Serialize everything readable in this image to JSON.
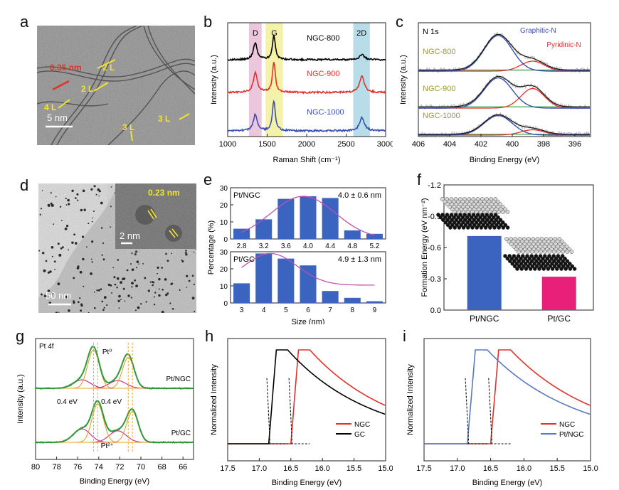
{
  "panel_labels": {
    "a": "a",
    "b": "b",
    "c": "c",
    "d": "d",
    "e": "e",
    "f": "f",
    "g": "g",
    "h": "h",
    "i": "i"
  },
  "panel_a": {
    "scale": "5 nm",
    "spacing": "0.36 nm",
    "layers": [
      "2 L",
      "2 L",
      "4 L",
      "3 L",
      "3 L"
    ],
    "bg_color": "#8a8a8a",
    "label_color": "#f3e32e",
    "spacing_color": "#e0322a"
  },
  "panel_d": {
    "scale_main": "50 nm",
    "scale_inset": "2 nm",
    "lattice": "0.23 nm",
    "bg_color": "#b9b9b9",
    "inset_color": "#6e6e6e",
    "label_color": "#f3e32e"
  },
  "chart_data": [
    {
      "panel": "b",
      "type": "line",
      "xlabel": "Raman Shift (cm⁻¹)",
      "ylabel": "Intensity (a.u.)",
      "xlim": [
        1000,
        3000
      ],
      "xticks": [
        1000,
        1500,
        2000,
        2500,
        3000
      ],
      "bands": [
        {
          "label": "D",
          "range": [
            1270,
            1430
          ],
          "color": "#ecc6dc"
        },
        {
          "label": "G",
          "range": [
            1480,
            1700
          ],
          "color": "#f4f2a8"
        },
        {
          "label": "2D",
          "range": [
            2590,
            2800
          ],
          "color": "#b7dde8"
        }
      ],
      "series": [
        {
          "name": "NGC-800",
          "color": "#000000",
          "D": 0.55,
          "G": 0.8,
          "2D": 0.18
        },
        {
          "name": "NGC-900",
          "color": "#e0322a",
          "D": 0.65,
          "G": 1.0,
          "2D": 0.55
        },
        {
          "name": "NGC-1000",
          "color": "#3a4fb0",
          "D": 0.55,
          "G": 1.0,
          "2D": 0.45
        }
      ]
    },
    {
      "panel": "c",
      "type": "line",
      "title": "N 1s",
      "xlabel": "Binding Energy (eV)",
      "ylabel": "Intensity (a.u.)",
      "xlim": [
        406,
        395
      ],
      "xticks": [
        406,
        404,
        402,
        400,
        398,
        396
      ],
      "annotations": [
        "Graphitic-N",
        "Pyridinic-N"
      ],
      "series": [
        {
          "name": "NGC-800",
          "graphitic": 1.0,
          "pyridinic": 0.28,
          "oxidized": 0.1
        },
        {
          "name": "NGC-900",
          "graphitic": 0.85,
          "pyridinic": 0.55,
          "oxidized": 0.12
        },
        {
          "name": "NGC-1000",
          "graphitic": 0.55,
          "pyridinic": 0.15,
          "oxidized": 0.08
        }
      ],
      "colors": {
        "graphitic": "#3a4fb0",
        "pyridinic": "#e0322a",
        "other": "#2e9a3a",
        "label": "#9a9a2a"
      }
    },
    {
      "panel": "e",
      "type": "bar",
      "xlabel": "Size (nm)",
      "ylabel": "Percentage (%)",
      "bar_color": "#3a64c0",
      "fit_color": "#c050b0",
      "subplots": [
        {
          "name": "Pt/NGC",
          "stat": "4.0 ± 0.6 nm",
          "categories": [
            "2.8",
            "3.2",
            "3.6",
            "4.0",
            "4.4",
            "4.8",
            "5.2"
          ],
          "values": [
            6,
            11.5,
            23.5,
            25,
            24,
            5,
            3
          ],
          "ylim": [
            0,
            30
          ],
          "yticks": [
            0,
            10,
            20,
            30
          ]
        },
        {
          "name": "Pt/GC",
          "stat": "4.9 ± 1.3 nm",
          "categories": [
            "3",
            "4",
            "5",
            "6",
            "7",
            "8",
            "9"
          ],
          "values": [
            11.5,
            29,
            26,
            22,
            7,
            3,
            1
          ],
          "ylim": [
            0,
            30
          ],
          "yticks": [
            0,
            10,
            20,
            30
          ]
        }
      ]
    },
    {
      "panel": "f",
      "type": "bar",
      "ylabel": "Formation Energy (eV nm⁻²)",
      "categories": [
        "Pt/NGC",
        "Pt/GC"
      ],
      "values": [
        -0.71,
        -0.32
      ],
      "colors": [
        "#3a64c0",
        "#e8207a"
      ],
      "ylim": [
        0,
        -1.2
      ],
      "yticks": [
        "0.0",
        "-0.3",
        "-0.6",
        "-0.9",
        "-1.2"
      ]
    },
    {
      "panel": "g",
      "type": "line",
      "title": "Pt 4f",
      "xlabel": "Binding Energy (eV)",
      "ylabel": "Intensity (a.u.)",
      "xlim": [
        80,
        65
      ],
      "xticks": [
        80,
        78,
        76,
        74,
        72,
        70,
        68,
        66
      ],
      "annotations": [
        "Pt⁰",
        "Pt²⁺",
        "0.4 eV",
        "0.4 eV"
      ],
      "series": [
        {
          "name": "Pt/NGC"
        },
        {
          "name": "Pt/GC"
        }
      ],
      "colors": {
        "fit": "#2e9a3a",
        "pt0": "#e8a020",
        "pt2": "#d0208a",
        "raw": "#7a7a7a"
      }
    },
    {
      "panel": "h",
      "type": "line",
      "xlabel": "Binding Energy (eV)",
      "ylabel": "Normalized Intensity",
      "xlim": [
        17.5,
        15.0
      ],
      "xticks": [
        "17.5",
        "17.0",
        "16.5",
        "16.0",
        "15.5",
        "15.0"
      ],
      "series": [
        {
          "name": "NGC",
          "color": "#e0322a",
          "cutoff": 16.5
        },
        {
          "name": "GC",
          "color": "#000000",
          "cutoff": 16.85
        }
      ]
    },
    {
      "panel": "i",
      "type": "line",
      "xlabel": "Binding Energy (eV)",
      "ylabel": "Normalized Intensity",
      "xlim": [
        17.5,
        15.0
      ],
      "xticks": [
        "17.5",
        "17.0",
        "16.5",
        "16.0",
        "15.5",
        "15.0"
      ],
      "series": [
        {
          "name": "NGC",
          "color": "#e0322a",
          "cutoff": 16.5
        },
        {
          "name": "Pt/NGC",
          "color": "#5a78c0",
          "cutoff": 16.85
        }
      ]
    }
  ]
}
